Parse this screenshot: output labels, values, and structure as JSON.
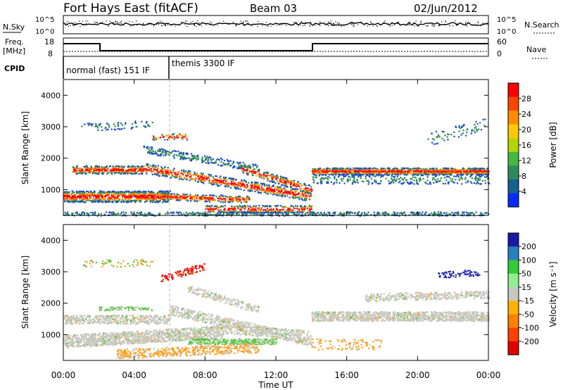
{
  "header": {
    "station": "Fort Hays East (fitACF)",
    "beam": "Beam 03",
    "date": "02/Jun/2012"
  },
  "top_panels": {
    "nsky_label": "N.Sky",
    "nsky_ticks": [
      "10^5",
      "10^0"
    ],
    "nsearch_label": "N.Search",
    "nsearch_ticks": [
      "10^5",
      "10^0"
    ],
    "freq_label_1": "Freq.",
    "freq_label_2": "[MHz]",
    "freq_ticks": [
      "18",
      "8"
    ],
    "nave_label": "Nave",
    "nave_ticks": [
      "60",
      "0"
    ],
    "cpid_label": "CPID",
    "cpid_modes": [
      "normal (fast) 151 IF",
      "themis 3300 IF"
    ]
  },
  "chart_data": [
    {
      "type": "heatmap",
      "title": "",
      "ylabel": "Slant Range [km]",
      "xlabel": "",
      "ylim": [
        180,
        4500
      ],
      "yticks": [
        "1000",
        "2000",
        "3000",
        "4000"
      ],
      "colorbar": {
        "label": "Power [dB]",
        "ticks": [
          "28",
          "24",
          "20",
          "16",
          "12",
          "8",
          "4"
        ],
        "colors": [
          "#ff0000",
          "#ff4400",
          "#ff8c00",
          "#ffc800",
          "#b8d400",
          "#43b843",
          "#2e8b57",
          "#16608f",
          "#0a2aff"
        ]
      }
    },
    {
      "type": "heatmap",
      "title": "",
      "ylabel": "Slant Range [km]",
      "xlabel": "Time UT",
      "ylim": [
        180,
        4500
      ],
      "yticks": [
        "1000",
        "2000",
        "3000",
        "4000"
      ],
      "xticks": [
        "00:00",
        "04:00",
        "08:00",
        "12:00",
        "16:00",
        "20:00",
        "00:00"
      ],
      "colorbar": {
        "label": "Velocity [m s⁻¹]",
        "ticks": [
          "200",
          "100",
          "50",
          "15",
          "-15",
          "-50",
          "-100",
          "-200"
        ],
        "colors": [
          "#1a1aaa",
          "#2a7fbf",
          "#32cd32",
          "#90ee90",
          "#c8c8c0",
          "#ffb000",
          "#ff8000",
          "#ff4000",
          "#e00000"
        ]
      }
    }
  ],
  "colors": {
    "power_bands": [
      "#ff0000",
      "#ff6a00",
      "#ffa500",
      "#2e8b57",
      "#1f4fbf"
    ],
    "velocity_ground": "#c8c8c0",
    "velocity_green": "#55c83a",
    "velocity_orange": "#ffa020",
    "velocity_red": "#e41010",
    "velocity_blue": "#1820b0"
  }
}
